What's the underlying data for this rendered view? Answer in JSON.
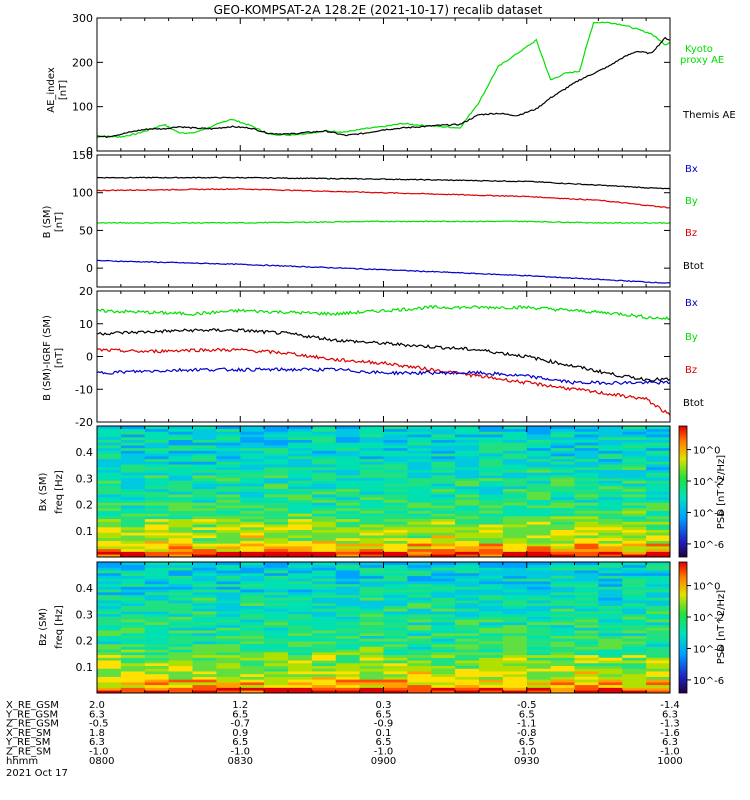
{
  "title": "GEO-KOMPSAT-2A 128.2E (2021-10-17) recalib dataset",
  "x_axis": {
    "range": [
      "0800",
      "1000"
    ],
    "tick_labels": [
      "0800",
      "0830",
      "0900",
      "0930",
      "1000"
    ],
    "date_label": "2021 Oct 17"
  },
  "ephemeris": {
    "rows": [
      {
        "label": "X_RE_GSM",
        "values": [
          "2.0",
          "1.2",
          "0.3",
          "-0.5",
          "-1.4"
        ]
      },
      {
        "label": "Y_RE_GSM",
        "values": [
          "6.3",
          "6.5",
          "6.5",
          "6.5",
          "6.3"
        ]
      },
      {
        "label": "Z_RE_GSM",
        "values": [
          "-0.5",
          "-0.7",
          "-0.9",
          "-1.1",
          "-1.3"
        ]
      },
      {
        "label": "X_RE_SM",
        "values": [
          "1.8",
          "0.9",
          "0.1",
          "-0.8",
          "-1.6"
        ]
      },
      {
        "label": "Y_RE_SM",
        "values": [
          "6.3",
          "6.5",
          "6.5",
          "6.5",
          "6.3"
        ]
      },
      {
        "label": "Z_RE_SM",
        "values": [
          "-1.0",
          "-1.0",
          "-1.0",
          "-1.0",
          "-1.0"
        ]
      },
      {
        "label": "hhmm",
        "values": [
          "0800",
          "0830",
          "0900",
          "0930",
          "1000"
        ]
      }
    ]
  },
  "colors": {
    "black": "#000000",
    "green": "#00e000",
    "red": "#dd0000",
    "blue": "#0000cc"
  },
  "chart_data": [
    {
      "type": "line",
      "panel": "ae",
      "ylabel_line1": "AE_index",
      "ylabel_line2": "[nT]",
      "ylim": [
        0,
        300
      ],
      "y_ticks": [
        "0",
        "100",
        "200",
        "300"
      ],
      "legend": [
        "Kyoto",
        "proxy AE",
        "Themis AE"
      ],
      "x": [
        0,
        2,
        5,
        8,
        11,
        14,
        17,
        20,
        24,
        28,
        32,
        36,
        40,
        44,
        48,
        52,
        56,
        60,
        64,
        68,
        72,
        76,
        80,
        84,
        88,
        92,
        95,
        98,
        101,
        104,
        107,
        110,
        113,
        116,
        119,
        120
      ],
      "series": [
        {
          "name": "Kyoto proxy AE",
          "color": "green",
          "values": [
            35,
            33,
            32,
            38,
            48,
            60,
            42,
            40,
            55,
            72,
            58,
            38,
            36,
            40,
            45,
            43,
            50,
            55,
            62,
            58,
            55,
            52,
            110,
            190,
            220,
            250,
            160,
            175,
            180,
            290,
            290,
            285,
            275,
            265,
            240,
            245
          ]
        },
        {
          "name": "Themis AE",
          "color": "black",
          "values": [
            33,
            32,
            38,
            45,
            50,
            50,
            55,
            52,
            50,
            55,
            52,
            40,
            38,
            42,
            45,
            35,
            40,
            48,
            52,
            55,
            58,
            60,
            82,
            85,
            80,
            95,
            120,
            140,
            160,
            175,
            190,
            210,
            225,
            220,
            255,
            250
          ]
        }
      ]
    },
    {
      "type": "line",
      "panel": "b_sm",
      "ylabel_line1": "B (SM)",
      "ylabel_line2": "[nT]",
      "ylim": [
        -25,
        150
      ],
      "y_ticks": [
        "0",
        "50",
        "100",
        "150"
      ],
      "legend": [
        "Bx",
        "By",
        "Bz",
        "Btot"
      ],
      "x": [
        0,
        30,
        60,
        90,
        105,
        120
      ],
      "series": [
        {
          "name": "Btot",
          "color": "black",
          "values": [
            120,
            120,
            118,
            115,
            110,
            105
          ]
        },
        {
          "name": "Bz",
          "color": "red",
          "values": [
            103,
            105,
            100,
            95,
            90,
            80
          ]
        },
        {
          "name": "By",
          "color": "green",
          "values": [
            60,
            60,
            62,
            62,
            60,
            60
          ]
        },
        {
          "name": "Bx",
          "color": "blue",
          "values": [
            10,
            5,
            -2,
            -10,
            -15,
            -20
          ]
        }
      ]
    },
    {
      "type": "line",
      "panel": "b_sm_minus_igrf",
      "ylabel_line1": "B (SM)-IGRF (SM)",
      "ylabel_line2": "[nT]",
      "ylim": [
        -20,
        20
      ],
      "y_ticks": [
        "-20",
        "-10",
        "0",
        "10",
        "20"
      ],
      "legend": [
        "Bx",
        "By",
        "Bz",
        "Btot"
      ],
      "x": [
        0,
        10,
        20,
        30,
        40,
        50,
        60,
        70,
        80,
        90,
        100,
        110,
        115,
        120
      ],
      "series": [
        {
          "name": "By",
          "color": "green",
          "values": [
            14,
            13.5,
            13,
            14,
            13.5,
            13,
            14,
            15,
            15,
            15,
            14,
            13,
            12,
            11.5
          ]
        },
        {
          "name": "Btot",
          "color": "black",
          "values": [
            7,
            7.5,
            8,
            8,
            7,
            5,
            4,
            3,
            2,
            0,
            -3,
            -6,
            -7,
            -7
          ]
        },
        {
          "name": "Bz",
          "color": "red",
          "values": [
            2,
            1.5,
            2,
            2,
            1,
            -1,
            -2,
            -4,
            -6,
            -8,
            -10,
            -12,
            -13,
            -18
          ]
        },
        {
          "name": "Bx",
          "color": "blue",
          "values": [
            -5,
            -4.5,
            -4,
            -4,
            -4,
            -4,
            -5,
            -5,
            -5,
            -6,
            -8,
            -8,
            -8,
            -8
          ]
        }
      ]
    },
    {
      "type": "heatmap",
      "panel": "spec_bx",
      "ylabel_line1": "Bx (SM)",
      "ylabel_line2": "freq [Hz]",
      "ylim": [
        0,
        0.5
      ],
      "y_ticks": [
        "0.1",
        "0.2",
        "0.3",
        "0.4"
      ],
      "colorbar_label": "PSD [nT^2/Hz]",
      "colorbar_ticks": [
        "10^0",
        "10^-2",
        "10^-4",
        "10^-6"
      ]
    },
    {
      "type": "heatmap",
      "panel": "spec_bz",
      "ylabel_line1": "Bz (SM)",
      "ylabel_line2": "freq [Hz]",
      "ylim": [
        0,
        0.5
      ],
      "y_ticks": [
        "0.1",
        "0.2",
        "0.3",
        "0.4"
      ],
      "colorbar_label": "PSD [nT^2/Hz]",
      "colorbar_ticks": [
        "10^0",
        "10^-2",
        "10^-4",
        "10^-6"
      ]
    }
  ]
}
